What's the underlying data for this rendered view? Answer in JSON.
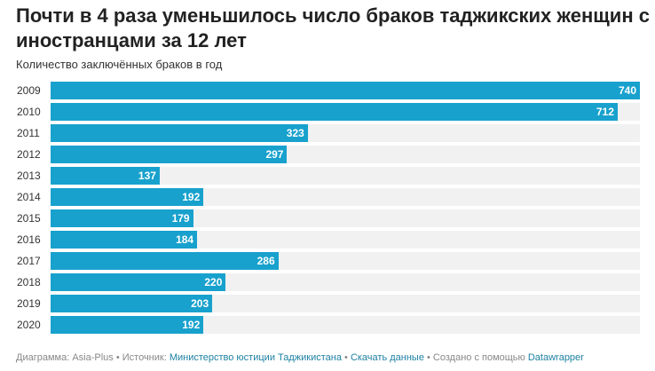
{
  "title": "Почти в 4 раза уменьшилось число браков таджикских женщин с иностранцами за 12 лет",
  "subtitle": "Количество заключённых браков в год",
  "chart_data": {
    "type": "bar",
    "orientation": "horizontal",
    "title": "Почти в 4 раза уменьшилось число браков таджикских женщин с иностранцами за 12 лет",
    "subtitle": "Количество заключённых браков в год",
    "categories": [
      "2009",
      "2010",
      "2011",
      "2012",
      "2013",
      "2014",
      "2015",
      "2016",
      "2017",
      "2018",
      "2019",
      "2020"
    ],
    "values": [
      740,
      712,
      323,
      297,
      137,
      192,
      179,
      184,
      286,
      220,
      203,
      192
    ],
    "xlim": [
      0,
      740
    ],
    "color": "#18a1cd",
    "track_color": "#f1f1f1",
    "data_labels": true
  },
  "footer": {
    "chart_by": "Диаграмма: Asia-Plus",
    "source_label": "Источник:",
    "source_link": "Министерство юстиции Таджикистана",
    "download": "Скачать данные",
    "created_with": "Создано с помощью",
    "tool": "Datawrapper",
    "sep": " • "
  }
}
